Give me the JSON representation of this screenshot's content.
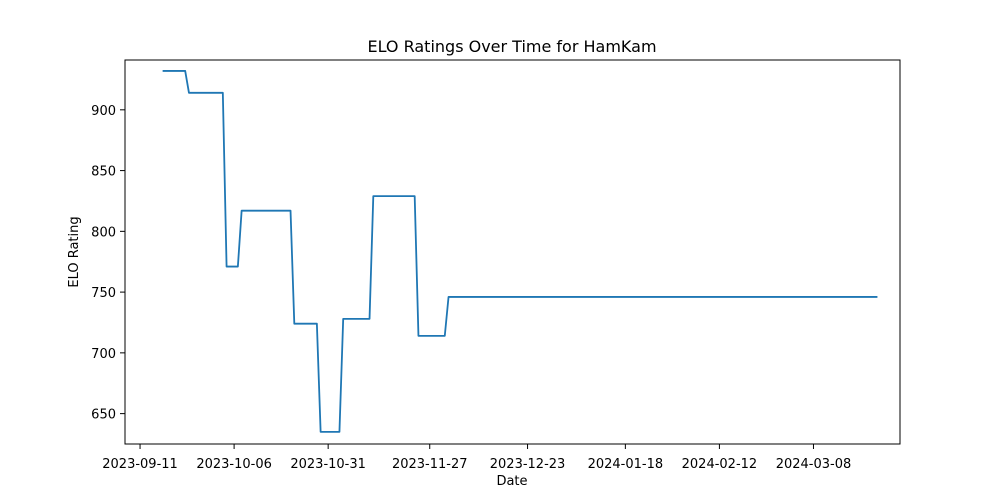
{
  "chart_data": {
    "type": "line",
    "title": "ELO Ratings Over Time for HamKam",
    "xlabel": "Date",
    "ylabel": "ELO Rating",
    "grid": false,
    "legend": "none",
    "x_ticks": [
      "2023-09-11",
      "2023-10-06",
      "2023-10-31",
      "2023-11-27",
      "2023-12-23",
      "2024-01-18",
      "2024-02-12",
      "2024-03-08"
    ],
    "y_ticks": [
      650,
      700,
      750,
      800,
      850,
      900
    ],
    "xlim": [
      "2023-09-07",
      "2024-03-31"
    ],
    "ylim": [
      625,
      941
    ],
    "series": [
      {
        "name": "",
        "color": "#1f77b4",
        "points": [
          {
            "x": "2023-09-17",
            "y": 932
          },
          {
            "x": "2023-09-23",
            "y": 932
          },
          {
            "x": "2023-09-24",
            "y": 914
          },
          {
            "x": "2023-10-03",
            "y": 914
          },
          {
            "x": "2023-10-04",
            "y": 771
          },
          {
            "x": "2023-10-07",
            "y": 771
          },
          {
            "x": "2023-10-08",
            "y": 817
          },
          {
            "x": "2023-10-21",
            "y": 817
          },
          {
            "x": "2023-10-22",
            "y": 724
          },
          {
            "x": "2023-10-28",
            "y": 724
          },
          {
            "x": "2023-10-29",
            "y": 635
          },
          {
            "x": "2023-11-03",
            "y": 635
          },
          {
            "x": "2023-11-04",
            "y": 728
          },
          {
            "x": "2023-11-11",
            "y": 728
          },
          {
            "x": "2023-11-12",
            "y": 829
          },
          {
            "x": "2023-11-23",
            "y": 829
          },
          {
            "x": "2023-11-24",
            "y": 714
          },
          {
            "x": "2023-12-01",
            "y": 714
          },
          {
            "x": "2023-12-02",
            "y": 746
          },
          {
            "x": "2024-03-25",
            "y": 746
          }
        ]
      }
    ]
  }
}
